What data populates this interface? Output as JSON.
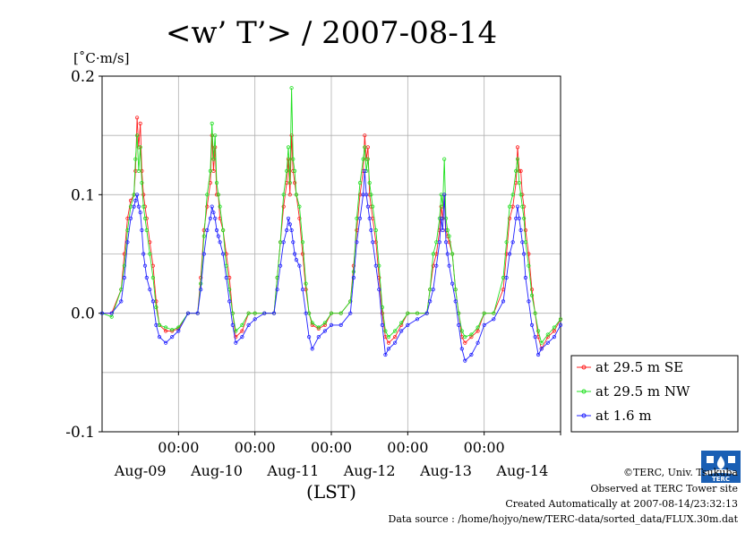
{
  "chart_data": {
    "type": "line",
    "title": "<w’ T’> / 2007-08-14",
    "ylabel": "[˚C·m/s]",
    "xlabel": "(LST)",
    "ylim": [
      -0.1,
      0.2
    ],
    "yticks": [
      -0.1,
      0.0,
      0.1,
      0.2
    ],
    "ytick_labels": [
      "-0.1",
      "0.0",
      "0.1",
      "0.2"
    ],
    "xlim": [
      0,
      144
    ],
    "xticks": [
      {
        "hour": 24,
        "time": "00:00",
        "date": "Aug-09"
      },
      {
        "hour": 48,
        "time": "00:00",
        "date": "Aug-10"
      },
      {
        "hour": 72,
        "time": "00:00",
        "date": "Aug-11"
      },
      {
        "hour": 96,
        "time": "00:00",
        "date": "Aug-12"
      },
      {
        "hour": 120,
        "time": "00:00",
        "date": "Aug-13"
      },
      {
        "hour": 144,
        "time": "",
        "date": "Aug-14"
      }
    ],
    "grid": true,
    "legend_position": "right",
    "series": [
      {
        "name": "at 29.5 m SE",
        "color": "#ff2020",
        "x": [
          0,
          3,
          6,
          7,
          8,
          9,
          10,
          10.5,
          11,
          11.5,
          12,
          12.5,
          13,
          13.5,
          14,
          15,
          16,
          17,
          18,
          20,
          22,
          24,
          27,
          30,
          31,
          32,
          33,
          34,
          34.5,
          35,
          35.5,
          36,
          36.5,
          37,
          38,
          39,
          40,
          41,
          42,
          44,
          46,
          48,
          51,
          54,
          55,
          56,
          57,
          58,
          58.5,
          59,
          59.5,
          60,
          60.5,
          61,
          62,
          63,
          64,
          65,
          66,
          68,
          70,
          72,
          75,
          78,
          79,
          80,
          81,
          82,
          82.5,
          83,
          83.5,
          84,
          84.5,
          85,
          86,
          87,
          88,
          89,
          90,
          92,
          94,
          96,
          99,
          102,
          103,
          104,
          105,
          106,
          106.5,
          107,
          107.5,
          108,
          108.5,
          109,
          110,
          111,
          112,
          113,
          114,
          116,
          118,
          120,
          123,
          126,
          127,
          128,
          129,
          130,
          130.5,
          131,
          131.5,
          132,
          132.5,
          133,
          134,
          135,
          136,
          137,
          138,
          140,
          142,
          144
        ],
        "y": [
          0.0,
          0.0,
          0.02,
          0.05,
          0.08,
          0.095,
          0.1,
          0.12,
          0.165,
          0.14,
          0.16,
          0.12,
          0.1,
          0.09,
          0.08,
          0.06,
          0.04,
          0.01,
          -0.01,
          -0.015,
          -0.015,
          -0.013,
          0.0,
          0.0,
          0.03,
          0.07,
          0.09,
          0.11,
          0.15,
          0.12,
          0.14,
          0.1,
          0.1,
          0.08,
          0.07,
          0.05,
          0.03,
          0.0,
          -0.02,
          -0.015,
          0.0,
          0.0,
          0.0,
          0.0,
          0.03,
          0.06,
          0.09,
          0.11,
          0.13,
          0.1,
          0.15,
          0.12,
          0.11,
          0.1,
          0.08,
          0.05,
          0.02,
          0.0,
          -0.01,
          -0.013,
          -0.01,
          0.0,
          0.0,
          0.01,
          0.04,
          0.07,
          0.1,
          0.12,
          0.15,
          0.13,
          0.14,
          0.1,
          0.09,
          0.08,
          0.06,
          0.03,
          0.0,
          -0.02,
          -0.025,
          -0.02,
          -0.01,
          0.0,
          0.0,
          0.0,
          0.02,
          0.04,
          0.05,
          0.07,
          0.09,
          0.08,
          0.1,
          0.07,
          0.065,
          0.06,
          0.05,
          0.02,
          0.0,
          -0.02,
          -0.025,
          -0.02,
          -0.015,
          0.0,
          0.0,
          0.02,
          0.05,
          0.08,
          0.09,
          0.11,
          0.14,
          0.12,
          0.12,
          0.1,
          0.09,
          0.07,
          0.05,
          0.02,
          0.0,
          -0.02,
          -0.03,
          -0.02,
          -0.015,
          -0.005
        ]
      },
      {
        "name": "at 29.5 m NW",
        "color": "#20e020",
        "x": [
          0,
          3,
          6,
          7,
          8,
          9,
          10,
          10.5,
          11,
          11.5,
          12,
          12.5,
          13,
          13.5,
          14,
          15,
          16,
          17,
          18,
          20,
          22,
          24,
          27,
          30,
          31,
          32,
          33,
          34,
          34.5,
          35,
          35.5,
          36,
          36.5,
          37,
          38,
          39,
          40,
          41,
          42,
          44,
          46,
          48,
          51,
          54,
          55,
          56,
          57,
          58,
          58.5,
          59,
          59.5,
          60,
          60.5,
          61,
          62,
          63,
          64,
          65,
          66,
          68,
          70,
          72,
          75,
          78,
          79,
          80,
          81,
          82,
          82.5,
          83,
          83.5,
          84,
          84.5,
          85,
          86,
          87,
          88,
          89,
          90,
          92,
          94,
          96,
          99,
          102,
          103,
          104,
          105,
          106,
          106.5,
          107,
          107.5,
          108,
          108.5,
          109,
          110,
          111,
          112,
          113,
          114,
          116,
          118,
          120,
          123,
          126,
          127,
          128,
          129,
          130,
          130.5,
          131,
          131.5,
          132,
          132.5,
          133,
          134,
          135,
          136,
          137,
          138,
          140,
          142,
          144
        ],
        "y": [
          0.0,
          -0.003,
          0.02,
          0.04,
          0.07,
          0.09,
          0.1,
          0.13,
          0.15,
          0.12,
          0.14,
          0.11,
          0.09,
          0.08,
          0.07,
          0.05,
          0.03,
          0.005,
          -0.01,
          -0.012,
          -0.014,
          -0.012,
          0.0,
          0.0,
          0.025,
          0.065,
          0.1,
          0.12,
          0.16,
          0.13,
          0.15,
          0.11,
          0.1,
          0.09,
          0.07,
          0.04,
          0.02,
          0.0,
          -0.015,
          -0.01,
          0.0,
          0.0,
          0.0,
          0.0,
          0.03,
          0.06,
          0.1,
          0.12,
          0.14,
          0.11,
          0.19,
          0.13,
          0.12,
          0.1,
          0.09,
          0.06,
          0.025,
          0.0,
          -0.008,
          -0.012,
          -0.008,
          0.0,
          0.0,
          0.01,
          0.035,
          0.08,
          0.11,
          0.13,
          0.14,
          0.12,
          0.13,
          0.11,
          0.1,
          0.09,
          0.07,
          0.04,
          0.005,
          -0.015,
          -0.02,
          -0.015,
          -0.008,
          0.0,
          0.0,
          0.0,
          0.02,
          0.05,
          0.06,
          0.08,
          0.1,
          0.09,
          0.13,
          0.08,
          0.07,
          0.065,
          0.05,
          0.02,
          0.0,
          -0.015,
          -0.02,
          -0.018,
          -0.012,
          0.0,
          0.0,
          0.03,
          0.06,
          0.09,
          0.1,
          0.12,
          0.13,
          0.11,
          0.1,
          0.09,
          0.08,
          0.06,
          0.04,
          0.015,
          0.0,
          -0.015,
          -0.025,
          -0.018,
          -0.012,
          -0.005
        ]
      },
      {
        "name": "at 1.6 m",
        "color": "#2020ff",
        "x": [
          0,
          3,
          6,
          7,
          8,
          9,
          10,
          10.5,
          11,
          11.5,
          12,
          12.5,
          13,
          13.5,
          14,
          15,
          16,
          17,
          18,
          20,
          22,
          24,
          27,
          30,
          31,
          32,
          33,
          34,
          34.5,
          35,
          35.5,
          36,
          36.5,
          37,
          38,
          39,
          40,
          41,
          42,
          44,
          46,
          48,
          51,
          54,
          55,
          56,
          57,
          58,
          58.5,
          59,
          59.5,
          60,
          60.5,
          61,
          62,
          63,
          64,
          65,
          66,
          68,
          70,
          72,
          75,
          78,
          79,
          80,
          81,
          82,
          82.5,
          83,
          83.5,
          84,
          84.5,
          85,
          86,
          87,
          88,
          89,
          90,
          92,
          94,
          96,
          99,
          102,
          103,
          104,
          105,
          106,
          106.5,
          107,
          107.5,
          108,
          108.5,
          109,
          110,
          111,
          112,
          113,
          114,
          116,
          118,
          120,
          123,
          126,
          127,
          128,
          129,
          130,
          130.5,
          131,
          131.5,
          132,
          132.5,
          133,
          134,
          135,
          136,
          137,
          138,
          140,
          142,
          144
        ],
        "y": [
          0.0,
          0.0,
          0.01,
          0.03,
          0.06,
          0.08,
          0.09,
          0.095,
          0.1,
          0.09,
          0.085,
          0.07,
          0.05,
          0.04,
          0.03,
          0.02,
          0.01,
          -0.01,
          -0.02,
          -0.025,
          -0.02,
          -0.015,
          0.0,
          0.0,
          0.02,
          0.05,
          0.07,
          0.08,
          0.09,
          0.085,
          0.08,
          0.07,
          0.065,
          0.06,
          0.05,
          0.03,
          0.01,
          -0.01,
          -0.025,
          -0.02,
          -0.01,
          -0.005,
          0.0,
          0.0,
          0.02,
          0.04,
          0.06,
          0.07,
          0.08,
          0.075,
          0.07,
          0.06,
          0.05,
          0.045,
          0.04,
          0.02,
          0.0,
          -0.02,
          -0.03,
          -0.02,
          -0.015,
          -0.01,
          -0.01,
          0.0,
          0.03,
          0.06,
          0.08,
          0.1,
          0.12,
          0.1,
          0.09,
          0.08,
          0.07,
          0.06,
          0.04,
          0.02,
          -0.01,
          -0.035,
          -0.03,
          -0.025,
          -0.015,
          -0.01,
          -0.005,
          0.0,
          0.01,
          0.02,
          0.04,
          0.06,
          0.08,
          0.07,
          0.1,
          0.06,
          0.05,
          0.04,
          0.025,
          0.01,
          -0.01,
          -0.03,
          -0.04,
          -0.035,
          -0.025,
          -0.01,
          -0.005,
          0.01,
          0.03,
          0.05,
          0.06,
          0.08,
          0.09,
          0.08,
          0.07,
          0.06,
          0.05,
          0.03,
          0.01,
          -0.01,
          -0.02,
          -0.035,
          -0.03,
          -0.025,
          -0.02,
          -0.01
        ]
      }
    ]
  },
  "credits": {
    "copyright": "©TERC, Univ. Tsukuba",
    "site": "Observed at TERC Tower site",
    "created": "Created Automatically at 2007-08-14/23:32:13",
    "source": "Data source : /home/hojyo/new/TERC-data/sorted_data/FLUX.30m.dat",
    "logo_text": "TERC"
  }
}
